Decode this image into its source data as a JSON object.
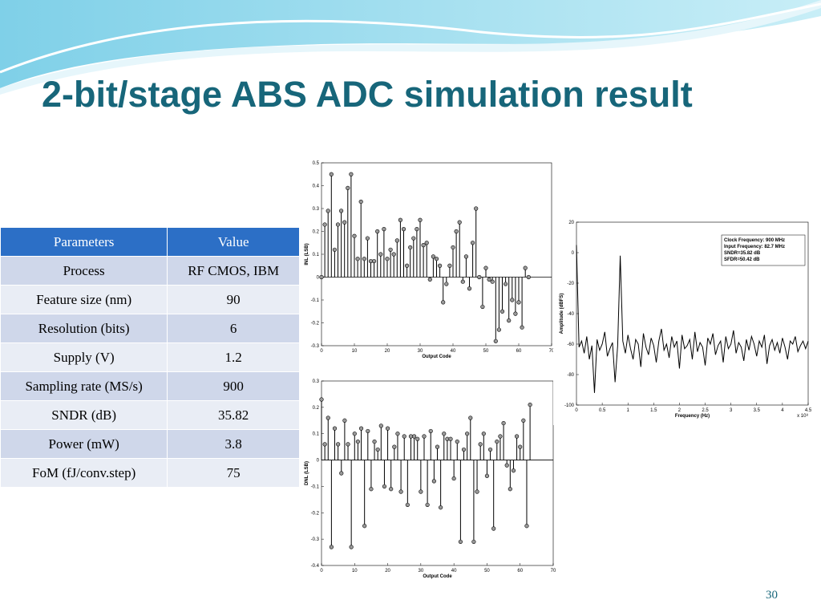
{
  "title": "2-bit/stage ABS ADC simulation result",
  "table": {
    "header": [
      "Parameters",
      "Value"
    ],
    "rows": [
      [
        "Process",
        "RF CMOS, IBM"
      ],
      [
        "Feature size (nm)",
        "90"
      ],
      [
        "Resolution (bits)",
        "6"
      ],
      [
        "Supply (V)",
        "1.2"
      ],
      [
        "Sampling rate (MS/s)",
        "900"
      ],
      [
        "SNDR (dB)",
        "35.82"
      ],
      [
        "Power (mW)",
        "3.8"
      ],
      [
        "FoM (fJ/conv.step)",
        "75"
      ]
    ]
  },
  "chart_data": [
    {
      "type": "stem",
      "xlabel": "Output Code",
      "ylabel": "INL (LSB)",
      "color": "#000000",
      "xlim": [
        0,
        70
      ],
      "xticks": [
        0,
        10,
        20,
        30,
        40,
        50,
        60,
        70
      ],
      "ylim": [
        -0.3,
        0.5
      ],
      "yticks": [
        -0.3,
        -0.2,
        -0.1,
        0,
        0.1,
        0.2,
        0.3,
        0.4,
        0.5
      ],
      "values": [
        0,
        0.23,
        0.29,
        0.45,
        0.12,
        0.23,
        0.29,
        0.24,
        0.39,
        0.45,
        0.18,
        0.08,
        0.33,
        0.08,
        0.17,
        0.07,
        0.07,
        0.2,
        0.1,
        0.21,
        0.08,
        0.12,
        0.1,
        0.16,
        0.25,
        0.21,
        0.05,
        0.13,
        0.17,
        0.21,
        0.25,
        0.14,
        0.15,
        -0.01,
        0.09,
        0.08,
        0.05,
        -0.11,
        -0.03,
        0.05,
        0.13,
        0.2,
        0.24,
        -0.02,
        0.09,
        -0.05,
        0.15,
        0.3,
        0,
        -0.13,
        0.04,
        -0.01,
        -0.02,
        -0.28,
        -0.23,
        -0.15,
        -0.03,
        -0.19,
        -0.1,
        -0.16,
        -0.11,
        -0.22,
        0.04,
        0
      ]
    },
    {
      "type": "stem",
      "xlabel": "Output Code",
      "ylabel": "DNL (LSB)",
      "color": "#000000",
      "xlim": [
        0,
        70
      ],
      "xticks": [
        0,
        10,
        20,
        30,
        40,
        50,
        60,
        70
      ],
      "ylim": [
        -0.4,
        0.3
      ],
      "yticks": [
        -0.4,
        -0.3,
        -0.2,
        -0.1,
        0,
        0.1,
        0.2,
        0.3
      ],
      "values": [
        0.23,
        0.06,
        0.16,
        -0.33,
        0.12,
        0.06,
        -0.05,
        0.15,
        0.06,
        -0.33,
        0.1,
        0.07,
        0.12,
        -0.25,
        0.11,
        -0.11,
        0.07,
        0.04,
        0.13,
        -0.1,
        0.12,
        -0.11,
        0.05,
        0.1,
        -0.12,
        0.09,
        -0.17,
        0.09,
        0.09,
        0.08,
        -0.12,
        0.09,
        -0.17,
        0.11,
        -0.08,
        0.05,
        -0.18,
        0.1,
        0.08,
        0.08,
        -0.07,
        0.07,
        -0.31,
        0.04,
        0.1,
        0.16,
        -0.31,
        -0.12,
        0.06,
        0.1,
        -0.06,
        0.04,
        -0.26,
        0.07,
        0.09,
        0.14,
        -0.02,
        -0.11,
        -0.04,
        0.09,
        0.05,
        0.15,
        -0.25,
        0.21
      ]
    },
    {
      "type": "line",
      "xlabel": "Frequency (Hz)",
      "ylabel": "Amplitude (dBFS)",
      "x_multiplier": "x 10⁸",
      "color": "#000000",
      "annotations": [
        "Clock Frequency: 900 MHz",
        "Input Frequency: 82.7 MHz",
        "SNDR=35.82 dB",
        "SFDR=50.42 dB"
      ],
      "xlim": [
        0,
        4.5
      ],
      "xticks": [
        0,
        0.5,
        1,
        1.5,
        2,
        2.5,
        3,
        3.5,
        4,
        4.5
      ],
      "ylim": [
        -100,
        20
      ],
      "yticks": [
        -100,
        -80,
        -60,
        -40,
        -20,
        0,
        20
      ],
      "x": [
        0,
        0.05,
        0.1,
        0.15,
        0.2,
        0.25,
        0.3,
        0.35,
        0.4,
        0.45,
        0.5,
        0.55,
        0.6,
        0.65,
        0.7,
        0.75,
        0.8,
        0.85,
        0.9,
        0.95,
        1,
        1.05,
        1.1,
        1.15,
        1.2,
        1.25,
        1.3,
        1.35,
        1.4,
        1.45,
        1.5,
        1.55,
        1.6,
        1.65,
        1.7,
        1.75,
        1.8,
        1.85,
        1.9,
        1.95,
        2,
        2.05,
        2.1,
        2.15,
        2.2,
        2.25,
        2.3,
        2.35,
        2.4,
        2.45,
        2.5,
        2.55,
        2.6,
        2.65,
        2.7,
        2.75,
        2.8,
        2.85,
        2.9,
        2.95,
        3,
        3.05,
        3.1,
        3.15,
        3.2,
        3.25,
        3.3,
        3.35,
        3.4,
        3.45,
        3.5,
        3.55,
        3.6,
        3.65,
        3.7,
        3.75,
        3.8,
        3.85,
        3.9,
        3.95,
        4,
        4.05,
        4.1,
        4.15,
        4.2,
        4.25,
        4.3,
        4.35,
        4.4,
        4.45,
        4.5
      ],
      "values": [
        5,
        -62,
        -58,
        -66,
        -55,
        -70,
        -61,
        -92,
        -57,
        -64,
        -60,
        -52,
        -68,
        -63,
        -59,
        -85,
        -61,
        -2,
        -58,
        -66,
        -54,
        -63,
        -70,
        -57,
        -60,
        -75,
        -53,
        -62,
        -67,
        -56,
        -61,
        -72,
        -58,
        -50,
        -64,
        -60,
        -69,
        -55,
        -62,
        -58,
        -76,
        -54,
        -63,
        -61,
        -57,
        -70,
        -52,
        -65,
        -59,
        -62,
        -74,
        -56,
        -60,
        -53,
        -67,
        -61,
        -58,
        -72,
        -55,
        -63,
        -60,
        -51,
        -66,
        -59,
        -62,
        -71,
        -57,
        -64,
        -55,
        -60,
        -68,
        -58,
        -62,
        -54,
        -73,
        -61,
        -57,
        -64,
        -59,
        -66,
        -56,
        -62,
        -70,
        -58,
        -60,
        -55,
        -65,
        -61,
        -58,
        -63,
        -58
      ]
    }
  ],
  "page_number": "30"
}
